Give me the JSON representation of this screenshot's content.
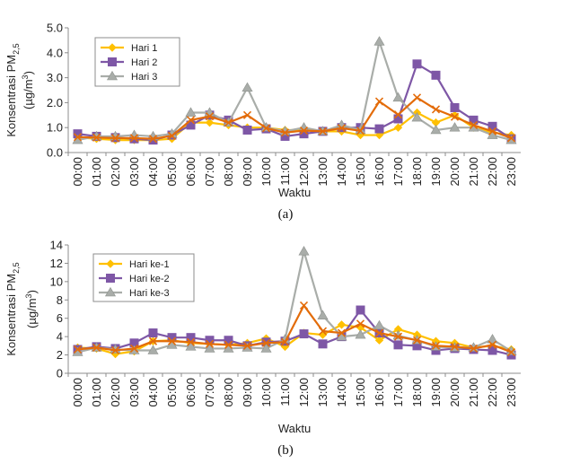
{
  "chart_data": [
    {
      "type": "line",
      "caption": "(a)",
      "xlabel": "Waktu",
      "ylabel": "Konsentrasi PM",
      "ylabel_sub": "2,5",
      "ylabel_unit": "(µg/m",
      "ylabel_unit_sup": "3",
      "ylabel_unit_end": ")",
      "ylim": [
        0,
        5
      ],
      "yticks": [
        "0.0",
        "1.0",
        "2.0",
        "3.0",
        "4.0",
        "5.0"
      ],
      "categories": [
        "00:00",
        "01:00",
        "02:00",
        "03:00",
        "04:00",
        "05:00",
        "06:00",
        "07:00",
        "08:00",
        "09:00",
        "10:00",
        "11:00",
        "12:00",
        "13:00",
        "14:00",
        "15:00",
        "16:00",
        "17:00",
        "18:00",
        "19:00",
        "20:00",
        "21:00",
        "22:00",
        "23:00"
      ],
      "legend_position": "top-left",
      "series": [
        {
          "name": "Hari 1",
          "color": "#FFC000",
          "marker": "diamond",
          "values": [
            0.6,
            0.55,
            0.5,
            0.5,
            0.5,
            0.55,
            1.2,
            1.2,
            1.1,
            1.0,
            1.0,
            0.9,
            0.9,
            0.85,
            0.85,
            0.7,
            0.7,
            1.0,
            1.6,
            1.2,
            1.5,
            1.0,
            0.8,
            0.7
          ]
        },
        {
          "name": "Hari 2",
          "color": "#7E57A6",
          "marker": "square",
          "values": [
            0.75,
            0.65,
            0.6,
            0.55,
            0.5,
            0.7,
            1.1,
            1.5,
            1.3,
            0.9,
            0.95,
            0.65,
            0.75,
            0.85,
            1.0,
            1.0,
            0.95,
            1.35,
            3.55,
            3.1,
            1.8,
            1.3,
            1.05,
            0.55
          ]
        },
        {
          "name": "Hari 3",
          "color": "#A9ADA9",
          "marker": "triangle",
          "values": [
            0.5,
            0.65,
            0.65,
            0.7,
            0.65,
            0.75,
            1.6,
            1.6,
            1.2,
            2.6,
            1.0,
            0.85,
            1.0,
            0.85,
            1.1,
            0.9,
            4.45,
            2.2,
            1.4,
            0.9,
            1.0,
            1.0,
            0.7,
            0.5
          ]
        },
        {
          "name": "",
          "color": "#E36C0A",
          "marker": "x",
          "values": [
            0.62,
            0.6,
            0.58,
            0.58,
            0.55,
            0.67,
            1.3,
            1.45,
            1.2,
            1.5,
            0.98,
            0.8,
            0.88,
            0.85,
            0.98,
            0.87,
            2.05,
            1.52,
            2.2,
            1.73,
            1.43,
            1.1,
            0.85,
            0.58
          ]
        }
      ]
    },
    {
      "type": "line",
      "caption": "(b)",
      "xlabel": "Waktu",
      "ylabel": "Konsentrasi PM",
      "ylabel_sub": "2,5",
      "ylabel_unit": "(µg/m",
      "ylabel_unit_sup": "3",
      "ylabel_unit_end": ")",
      "ylim": [
        0,
        14
      ],
      "yticks": [
        "0",
        "2",
        "4",
        "6",
        "8",
        "10",
        "12",
        "14"
      ],
      "categories": [
        "00:00",
        "01:00",
        "02:00",
        "03:00",
        "04:00",
        "05:00",
        "06:00",
        "07:00",
        "08:00",
        "09:00",
        "10:00",
        "11:00",
        "12:00",
        "13:00",
        "14:00",
        "15:00",
        "16:00",
        "17:00",
        "18:00",
        "19:00",
        "20:00",
        "21:00",
        "22:00",
        "23:00"
      ],
      "legend_position": "top-left",
      "series": [
        {
          "name": "Hari ke-1",
          "color": "#FFC000",
          "marker": "diamond",
          "values": [
            2.8,
            2.7,
            2.1,
            2.4,
            3.5,
            3.6,
            3.3,
            3.2,
            3.1,
            3.3,
            3.8,
            2.9,
            4.4,
            4.2,
            5.3,
            5.0,
            3.6,
            4.8,
            4.2,
            3.5,
            3.3,
            2.8,
            3.0,
            2.6
          ]
        },
        {
          "name": "Hari ke-2",
          "color": "#7E57A6",
          "marker": "square",
          "values": [
            2.6,
            2.9,
            2.7,
            3.3,
            4.4,
            3.9,
            3.9,
            3.6,
            3.6,
            3.0,
            3.4,
            3.5,
            4.3,
            3.2,
            4.0,
            6.9,
            4.4,
            3.1,
            3.0,
            2.5,
            2.7,
            2.6,
            2.5,
            2.0
          ]
        },
        {
          "name": "Hari ke-3",
          "color": "#A9ADA9",
          "marker": "triangle",
          "values": [
            2.3,
            2.8,
            2.6,
            2.5,
            2.5,
            3.1,
            2.9,
            2.7,
            2.7,
            2.8,
            2.7,
            3.7,
            13.3,
            6.3,
            4.0,
            4.2,
            5.2,
            4.1,
            3.6,
            2.9,
            2.8,
            2.8,
            3.7,
            2.4
          ]
        },
        {
          "name": "",
          "color": "#E36C0A",
          "marker": "x",
          "values": [
            2.6,
            2.8,
            2.5,
            2.7,
            3.5,
            3.5,
            3.4,
            3.2,
            3.1,
            3.0,
            3.3,
            3.4,
            7.4,
            4.6,
            4.4,
            5.4,
            4.4,
            4.0,
            3.6,
            3.0,
            2.9,
            2.7,
            3.1,
            2.3
          ]
        }
      ]
    }
  ]
}
